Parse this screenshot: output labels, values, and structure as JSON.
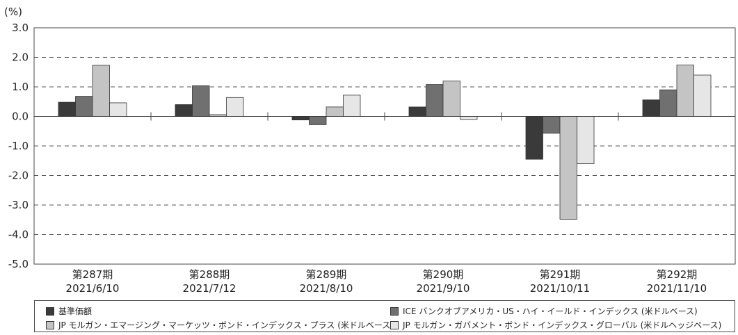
{
  "chart_data": {
    "type": "bar",
    "ylabel": "(%)",
    "ylim": [
      -5.0,
      3.0
    ],
    "yticks": [
      "3.0",
      "2.0",
      "1.0",
      "0.0",
      "-1.0",
      "-2.0",
      "-3.0",
      "-4.0",
      "-5.0"
    ],
    "grid": "horizontal dashed",
    "legend_position": "bottom",
    "categories": [
      {
        "period": "第287期",
        "date": "2021/6/10"
      },
      {
        "period": "第288期",
        "date": "2021/7/12"
      },
      {
        "period": "第289期",
        "date": "2021/8/10"
      },
      {
        "period": "第290期",
        "date": "2021/9/10"
      },
      {
        "period": "第291期",
        "date": "2021/10/11"
      },
      {
        "period": "第292期",
        "date": "2021/11/10"
      }
    ],
    "series": [
      {
        "name": "基準価額",
        "color": "#3a3a3a",
        "values": [
          0.48,
          0.4,
          -0.12,
          0.32,
          -1.45,
          0.56
        ]
      },
      {
        "name": "ICE バンクオブアメリカ・US・ハイ・イールド・インデックス (米ドルベース)",
        "color": "#707070",
        "values": [
          0.68,
          1.04,
          -0.28,
          1.08,
          -0.57,
          0.9
        ]
      },
      {
        "name": "JP モルガン・エマージング・マーケッツ・ボンド・インデックス・プラス (米ドルベース)",
        "color": "#c4c4c4",
        "values": [
          1.73,
          0.06,
          0.32,
          1.2,
          -3.48,
          1.74
        ]
      },
      {
        "name": "JP モルガン・ガバメント・ボンド・インデックス・グローバル (米ドルヘッジベース)",
        "color": "#e6e6e6",
        "values": [
          0.46,
          0.64,
          0.72,
          -0.1,
          -1.6,
          1.4
        ]
      }
    ]
  }
}
